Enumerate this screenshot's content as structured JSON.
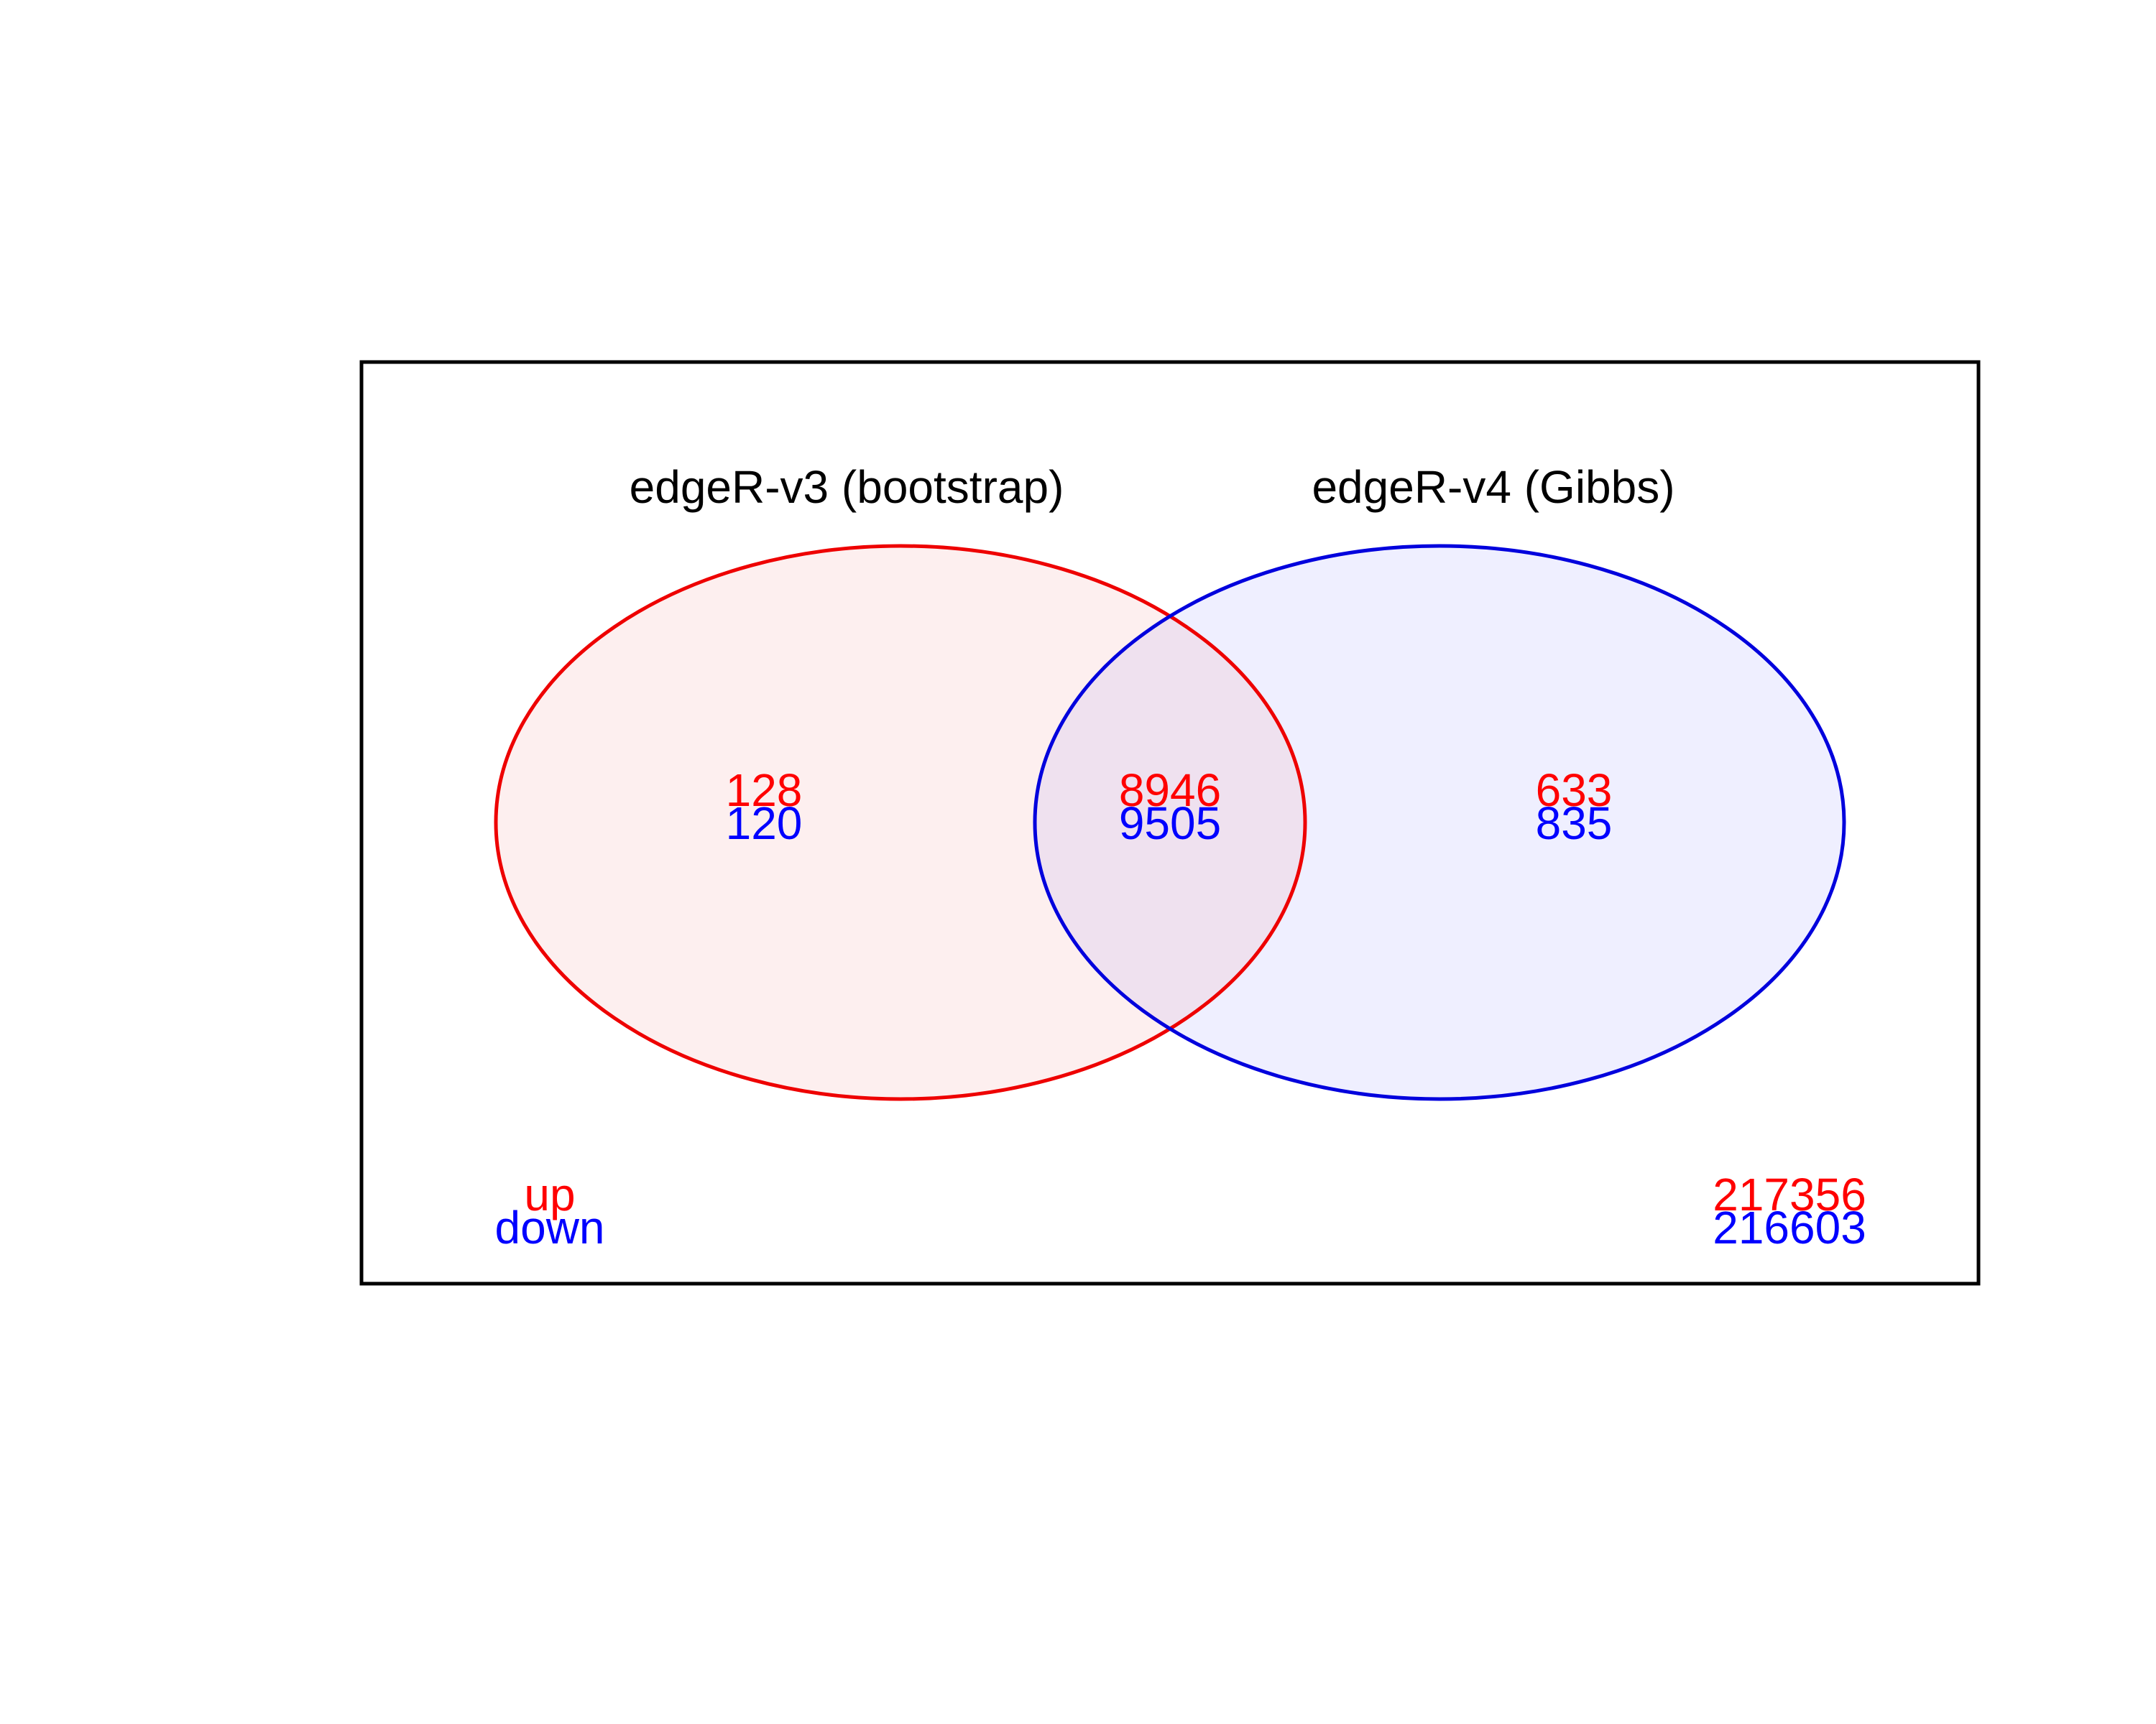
{
  "colors": {
    "up": "#ff0000",
    "down": "#0000ff",
    "set_a_stroke": "#ee0000",
    "set_a_fill": "#fdefef",
    "set_b_stroke": "#0000dd",
    "set_b_fill": "#efefff",
    "overlap_fill": "#efe1ef",
    "frame": "#000000"
  },
  "sets": [
    {
      "name": "edgeR-v3 (bootstrap)"
    },
    {
      "name": "edgeR-v4 (Gibbs)"
    }
  ],
  "regions": {
    "a_only": {
      "up": "128",
      "down": "120"
    },
    "both": {
      "up": "8946",
      "down": "9505"
    },
    "b_only": {
      "up": "633",
      "down": "835"
    },
    "neither": {
      "up": "217356",
      "down": "216603"
    }
  },
  "legend": {
    "up": "up",
    "down": "down"
  }
}
